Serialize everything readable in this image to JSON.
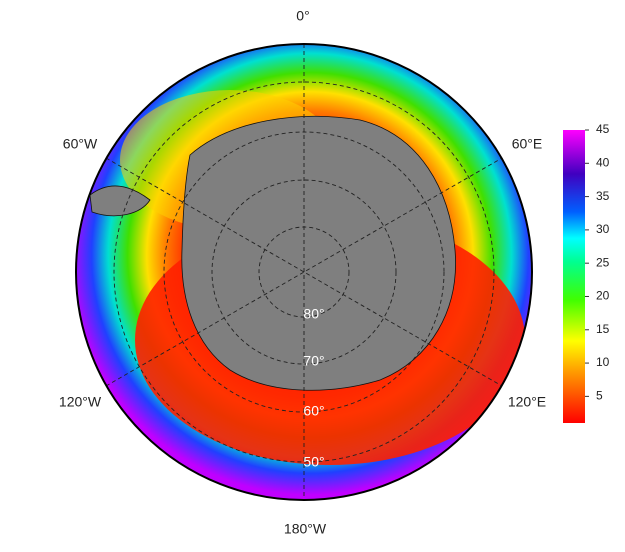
{
  "map": {
    "longitude_labels": [
      "0°",
      "60°E",
      "120°E",
      "180°W",
      "120°W",
      "60°W"
    ],
    "latitude_labels": [
      "80°",
      "70°",
      "60°",
      "50°"
    ],
    "colorbar": {
      "range": [
        1,
        45
      ],
      "ticks": [
        5,
        10,
        15,
        20,
        25,
        30,
        35,
        40,
        45
      ]
    }
  }
}
